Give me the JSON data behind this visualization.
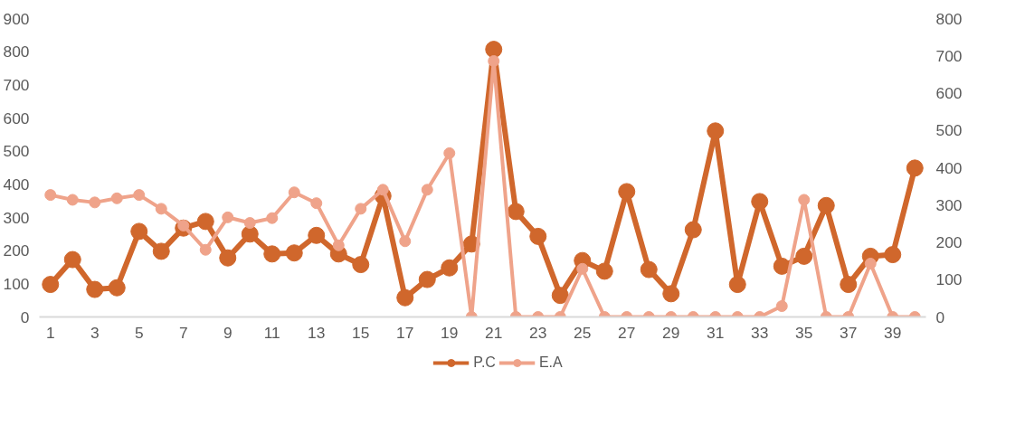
{
  "chart_data": {
    "type": "line",
    "x": [
      1,
      2,
      3,
      4,
      5,
      6,
      7,
      8,
      9,
      10,
      11,
      12,
      13,
      14,
      15,
      16,
      17,
      18,
      19,
      20,
      21,
      22,
      23,
      24,
      25,
      26,
      27,
      28,
      29,
      30,
      31,
      32,
      33,
      34,
      35,
      36,
      37,
      38,
      39,
      40
    ],
    "xlim": [
      0.5,
      40.5
    ],
    "xticks": [
      1,
      3,
      5,
      7,
      9,
      11,
      13,
      15,
      17,
      19,
      21,
      23,
      25,
      27,
      29,
      31,
      33,
      35,
      37,
      39
    ],
    "ylim": [
      0,
      900
    ],
    "yticks": [
      0,
      100,
      200,
      300,
      400,
      500,
      600,
      700,
      800,
      900
    ],
    "y2lim": [
      0,
      800
    ],
    "y2ticks": [
      0,
      100,
      200,
      300,
      400,
      500,
      600,
      700,
      800
    ],
    "series": [
      {
        "name": "P.C",
        "color": "#d0672c",
        "values": [
          98,
          173,
          83,
          88,
          258,
          198,
          268,
          288,
          178,
          250,
          190,
          193,
          246,
          190,
          158,
          365,
          58,
          113,
          148,
          220,
          807,
          318,
          243,
          65,
          170,
          138,
          378,
          143,
          70,
          263,
          561,
          98,
          348,
          153,
          183,
          336,
          98,
          183,
          188,
          449
        ]
      },
      {
        "name": "E.A",
        "color": "#efa38a",
        "axis": "y2",
        "values": [
          327,
          314,
          307,
          318,
          327,
          290,
          245,
          180,
          267,
          252,
          265,
          334,
          305,
          192,
          290,
          341,
          203,
          341,
          439,
          0,
          686,
          0,
          0,
          0,
          129,
          0,
          0,
          0,
          0,
          0,
          0,
          0,
          0,
          29,
          314,
          0,
          0,
          143,
          0,
          0
        ]
      }
    ],
    "marker": "circle",
    "line_style": "solid",
    "grid": false,
    "legend": "bottom"
  }
}
